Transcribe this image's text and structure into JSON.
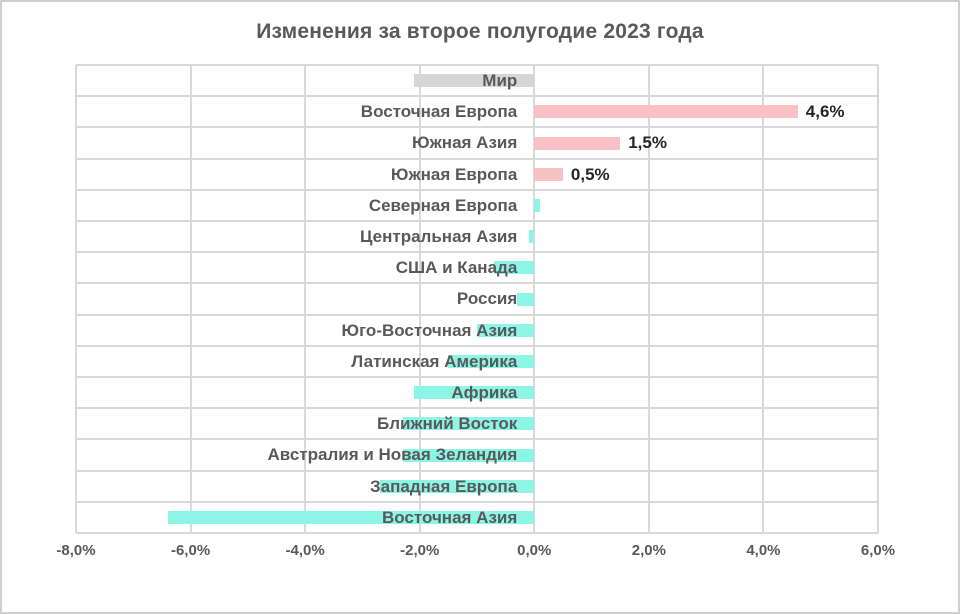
{
  "chart_data": {
    "type": "bar",
    "orientation": "horizontal",
    "title": "Изменения за второе полугодие 2023 года",
    "xlabel": "",
    "ylabel": "",
    "xlim": [
      -8,
      6
    ],
    "grid": true,
    "value_unit": "%",
    "x_ticks": [
      {
        "value": -8,
        "label": "-8,0%"
      },
      {
        "value": -6,
        "label": "-6,0%"
      },
      {
        "value": -4,
        "label": "-4,0%"
      },
      {
        "value": -2,
        "label": "-2,0%"
      },
      {
        "value": 0,
        "label": "0,0%"
      },
      {
        "value": 2,
        "label": "2,0%"
      },
      {
        "value": 4,
        "label": "4,0%"
      },
      {
        "value": 6,
        "label": "6,0%"
      }
    ],
    "categories": [
      {
        "label": "Мир",
        "value": -2.1,
        "color": "gray",
        "data_label": null
      },
      {
        "label": "Восточная Европа",
        "value": 4.6,
        "color": "pink",
        "data_label": "4,6%"
      },
      {
        "label": "Южная Азия",
        "value": 1.5,
        "color": "pink",
        "data_label": "1,5%"
      },
      {
        "label": "Южная Европа",
        "value": 0.5,
        "color": "pink",
        "data_label": "0,5%"
      },
      {
        "label": "Северная Европа",
        "value": 0.1,
        "color": "teal",
        "data_label": null
      },
      {
        "label": "Центральная Азия",
        "value": -0.1,
        "color": "teal",
        "data_label": null
      },
      {
        "label": "США и Канада",
        "value": -0.7,
        "color": "teal",
        "data_label": null
      },
      {
        "label": "Россия",
        "value": -0.3,
        "color": "teal",
        "data_label": null
      },
      {
        "label": "Юго-Восточная Азия",
        "value": -1.0,
        "color": "teal",
        "data_label": null
      },
      {
        "label": "Латинская Америка",
        "value": -1.5,
        "color": "teal",
        "data_label": null
      },
      {
        "label": "Африка",
        "value": -2.1,
        "color": "teal",
        "data_label": null
      },
      {
        "label": "Ближний Восток",
        "value": -2.3,
        "color": "teal",
        "data_label": null
      },
      {
        "label": "Австралия и Новая Зеландия",
        "value": -2.3,
        "color": "teal",
        "data_label": null
      },
      {
        "label": "Западная Европа",
        "value": -2.7,
        "color": "teal",
        "data_label": null
      },
      {
        "label": "Восточная Азия",
        "value": -6.4,
        "color": "teal",
        "data_label": null
      }
    ],
    "colors": {
      "pink": "#F8C2C4",
      "teal": "#8CF5E6",
      "gray": "#D6D6D6",
      "grid": "#D9D9D9",
      "title_text": "#595959",
      "category_text": "#595959",
      "axis_text": "#595959",
      "data_label_text": "#262626"
    }
  }
}
